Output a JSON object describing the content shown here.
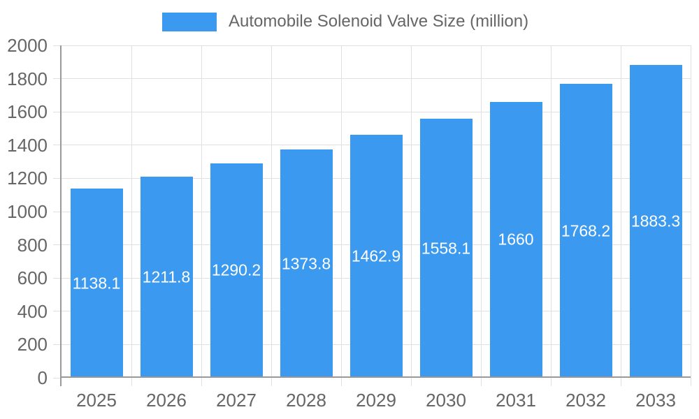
{
  "legend": {
    "label": "Automobile Solenoid Valve Size (million)"
  },
  "colors": {
    "bar": "#3b9af0",
    "axis": "#999999",
    "grid": "#e0e0e0",
    "axis_text": "#666666",
    "bar_label_text": "#ffffff",
    "background": "#ffffff"
  },
  "chart_data": {
    "type": "bar",
    "title": "Automobile Solenoid Valve Size (million)",
    "categories": [
      "2025",
      "2026",
      "2027",
      "2028",
      "2029",
      "2030",
      "2031",
      "2032",
      "2033"
    ],
    "values": [
      1138.1,
      1211.8,
      1290.2,
      1373.8,
      1462.9,
      1558.1,
      1660,
      1768.2,
      1883.3
    ],
    "value_labels": [
      "1138.1",
      "1211.8",
      "1290.2",
      "1373.8",
      "1462.9",
      "1558.1",
      "1660",
      "1768.2",
      "1883.3"
    ],
    "xlabel": "",
    "ylabel": "",
    "ylim": [
      0,
      2000
    ],
    "yticks": [
      0,
      200,
      400,
      600,
      800,
      1000,
      1200,
      1400,
      1600,
      1800,
      2000
    ],
    "grid": true,
    "legend_position": "top",
    "value_labels_position": "inside-center",
    "bar_width_fraction": 0.75
  }
}
